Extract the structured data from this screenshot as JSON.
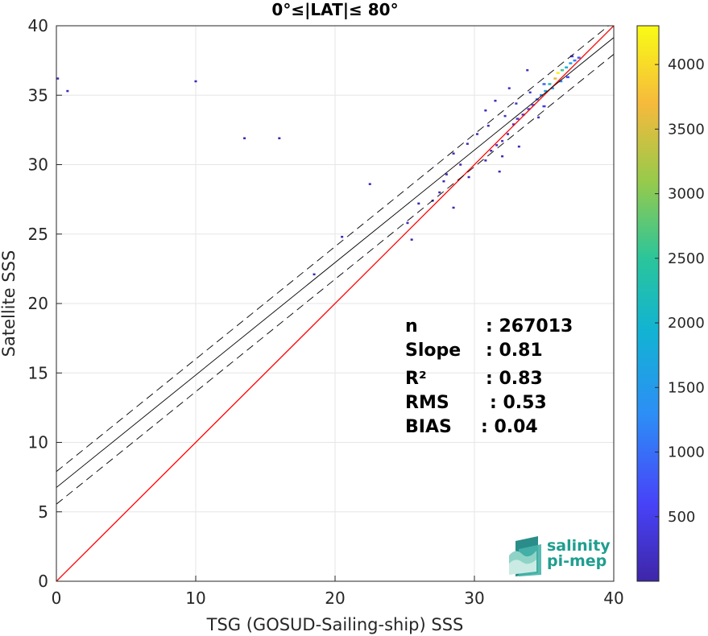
{
  "chart_data": {
    "type": "heatmap",
    "title": "0°≤|LAT|≤ 80°",
    "xlabel": "TSG (GOSUD-Sailing-ship) SSS",
    "ylabel": "Satellite SSS",
    "xlim": [
      0,
      40
    ],
    "ylim": [
      0,
      40
    ],
    "xticks": [
      "0",
      "10",
      "20",
      "30",
      "40"
    ],
    "yticks": [
      "0",
      "5",
      "10",
      "15",
      "20",
      "25",
      "30",
      "35",
      "40"
    ],
    "grid": true,
    "colorbar": {
      "range": [
        0,
        4300
      ],
      "ticks": [
        "500",
        "1000",
        "1500",
        "2000",
        "2500",
        "3000",
        "3500",
        "4000"
      ],
      "colormap": [
        "#3e26a8",
        "#4743f8",
        "#2d8ef6",
        "#12b3d3",
        "#2ac59b",
        "#97ca4b",
        "#f6ba3c",
        "#f9fb15"
      ]
    },
    "lines": [
      {
        "role": "identity",
        "slope": 1.0,
        "intercept": 0.0,
        "color": "#ff0000",
        "style": "solid"
      },
      {
        "role": "regression",
        "slope": 0.81,
        "intercept": 6.75,
        "color": "#000000",
        "style": "solid"
      },
      {
        "role": "regression-upper",
        "slope": 0.81,
        "intercept": 7.9,
        "color": "#000000",
        "style": "dashed"
      },
      {
        "role": "regression-lower",
        "slope": 0.81,
        "intercept": 5.55,
        "color": "#000000",
        "style": "dashed"
      }
    ],
    "cells": [
      {
        "x": 36.0,
        "y": 36.6,
        "v": 4200
      },
      {
        "x": 35.8,
        "y": 36.2,
        "v": 3600
      },
      {
        "x": 36.3,
        "y": 36.8,
        "v": 2600
      },
      {
        "x": 35.4,
        "y": 35.8,
        "v": 2200
      },
      {
        "x": 36.6,
        "y": 37.0,
        "v": 1900
      },
      {
        "x": 35.1,
        "y": 35.3,
        "v": 1700
      },
      {
        "x": 36.9,
        "y": 37.3,
        "v": 1500
      },
      {
        "x": 34.8,
        "y": 35.0,
        "v": 1300
      },
      {
        "x": 37.2,
        "y": 37.5,
        "v": 1100
      },
      {
        "x": 34.5,
        "y": 34.7,
        "v": 950
      },
      {
        "x": 37.5,
        "y": 37.7,
        "v": 800
      },
      {
        "x": 35.6,
        "y": 35.5,
        "v": 1400
      },
      {
        "x": 36.2,
        "y": 36.0,
        "v": 1200
      },
      {
        "x": 35.0,
        "y": 35.8,
        "v": 900
      },
      {
        "x": 34.2,
        "y": 34.3,
        "v": 700
      },
      {
        "x": 33.9,
        "y": 34.0,
        "v": 550
      },
      {
        "x": 33.5,
        "y": 33.6,
        "v": 420
      },
      {
        "x": 33.1,
        "y": 33.3,
        "v": 350
      },
      {
        "x": 32.8,
        "y": 32.9,
        "v": 300
      },
      {
        "x": 32.4,
        "y": 32.2,
        "v": 250
      },
      {
        "x": 32.0,
        "y": 31.7,
        "v": 200
      },
      {
        "x": 31.6,
        "y": 31.4,
        "v": 150
      },
      {
        "x": 31.2,
        "y": 31.0,
        "v": 120
      },
      {
        "x": 30.8,
        "y": 30.3,
        "v": 90
      },
      {
        "x": 35.0,
        "y": 34.2,
        "v": 400
      },
      {
        "x": 34.0,
        "y": 35.2,
        "v": 300
      },
      {
        "x": 36.7,
        "y": 36.3,
        "v": 650
      },
      {
        "x": 37.0,
        "y": 37.8,
        "v": 500
      },
      {
        "x": 33.0,
        "y": 34.4,
        "v": 200
      },
      {
        "x": 34.6,
        "y": 33.4,
        "v": 180
      },
      {
        "x": 32.2,
        "y": 33.5,
        "v": 150
      },
      {
        "x": 31.0,
        "y": 32.8,
        "v": 120
      },
      {
        "x": 30.2,
        "y": 32.2,
        "v": 90
      },
      {
        "x": 29.5,
        "y": 31.5,
        "v": 80
      },
      {
        "x": 28.5,
        "y": 30.8,
        "v": 70
      },
      {
        "x": 29.0,
        "y": 30.0,
        "v": 60
      },
      {
        "x": 28.0,
        "y": 29.3,
        "v": 50
      },
      {
        "x": 27.5,
        "y": 28.0,
        "v": 40
      },
      {
        "x": 27.0,
        "y": 27.4,
        "v": 40
      },
      {
        "x": 26.0,
        "y": 27.2,
        "v": 40
      },
      {
        "x": 28.5,
        "y": 26.9,
        "v": 30
      },
      {
        "x": 25.2,
        "y": 25.8,
        "v": 30
      },
      {
        "x": 25.5,
        "y": 24.6,
        "v": 30
      },
      {
        "x": 20.5,
        "y": 24.8,
        "v": 30
      },
      {
        "x": 18.5,
        "y": 22.1,
        "v": 30
      },
      {
        "x": 13.5,
        "y": 31.9,
        "v": 40
      },
      {
        "x": 16.0,
        "y": 31.9,
        "v": 30
      },
      {
        "x": 22.5,
        "y": 28.6,
        "v": 30
      },
      {
        "x": 0.1,
        "y": 36.2,
        "v": 30
      },
      {
        "x": 10.0,
        "y": 36.0,
        "v": 30
      },
      {
        "x": 0.8,
        "y": 35.3,
        "v": 20
      },
      {
        "x": 33.8,
        "y": 36.8,
        "v": 200
      },
      {
        "x": 32.5,
        "y": 35.5,
        "v": 150
      },
      {
        "x": 31.5,
        "y": 34.6,
        "v": 110
      },
      {
        "x": 30.8,
        "y": 33.9,
        "v": 90
      },
      {
        "x": 33.2,
        "y": 31.3,
        "v": 100
      },
      {
        "x": 32.0,
        "y": 30.6,
        "v": 80
      },
      {
        "x": 31.8,
        "y": 29.5,
        "v": 70
      },
      {
        "x": 29.6,
        "y": 29.1,
        "v": 60
      },
      {
        "x": 27.8,
        "y": 28.8,
        "v": 50
      }
    ],
    "stats": [
      {
        "label": "n",
        "value": ": 267013"
      },
      {
        "label": "Slope",
        "value": ": 0.81"
      },
      {
        "label": "R²",
        "value": ": 0.83"
      },
      {
        "label": "RMS",
        "value": ": 0.53"
      },
      {
        "label": "BIAS",
        "value": ": 0.04"
      }
    ]
  },
  "logo": {
    "line1": "salinity",
    "line2": "pi-mep"
  }
}
